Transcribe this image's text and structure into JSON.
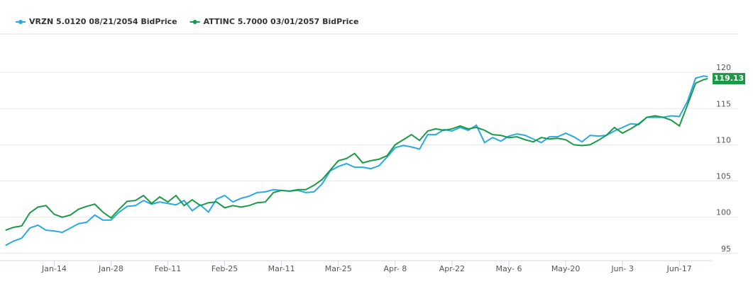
{
  "chart_data": {
    "type": "line",
    "x": [
      2,
      4,
      6,
      8,
      10,
      12,
      14,
      16,
      18,
      20,
      22,
      24,
      26,
      28,
      30,
      32,
      34,
      36,
      38,
      40,
      42,
      44,
      46,
      48,
      50,
      52,
      54,
      56,
      58,
      60,
      62,
      64,
      66,
      68,
      70,
      72,
      74,
      76,
      78,
      80,
      82,
      84,
      86,
      88,
      90,
      92,
      94,
      96,
      98,
      100,
      102,
      104,
      106,
      108,
      110,
      112,
      114,
      116,
      118,
      120,
      122,
      124,
      126,
      128,
      130,
      132,
      134,
      136,
      138,
      140,
      142,
      144,
      146,
      148,
      150,
      152,
      154,
      156,
      158,
      160,
      162,
      164,
      166,
      168,
      170,
      172,
      174,
      175
    ],
    "series": [
      {
        "name": "VRZN 5.0120 08/21/2054 BidPrice",
        "color": "#2aa9e0",
        "values": [
          96.1,
          96.7,
          97.1,
          98.5,
          98.9,
          98.2,
          98.1,
          97.9,
          98.5,
          99.1,
          99.3,
          100.3,
          99.6,
          99.6,
          100.7,
          101.5,
          101.6,
          102.3,
          101.8,
          102.1,
          101.9,
          101.7,
          102.3,
          100.9,
          101.7,
          100.7,
          102.5,
          103.0,
          102.1,
          102.6,
          102.9,
          103.4,
          103.5,
          103.8,
          103.7,
          103.6,
          103.7,
          103.4,
          103.5,
          104.6,
          106.4,
          107.0,
          107.4,
          106.9,
          106.9,
          106.7,
          107.1,
          108.3,
          109.6,
          109.9,
          109.7,
          109.4,
          111.4,
          111.4,
          112.1,
          111.9,
          112.4,
          112.0,
          112.7,
          110.3,
          111.0,
          110.5,
          111.2,
          111.5,
          111.3,
          110.8,
          110.3,
          111.1,
          111.1,
          111.6,
          111.1,
          110.4,
          111.3,
          111.2,
          111.3,
          111.9,
          112.4,
          112.9,
          112.8,
          113.8,
          113.8,
          113.8,
          114.0,
          113.9,
          116.0,
          119.2,
          119.5,
          119.4
        ]
      },
      {
        "name": "ATTINC 5.7000 03/01/2057 BidPrice",
        "color": "#1a9a46",
        "values": [
          98.2,
          98.6,
          98.8,
          100.6,
          101.4,
          101.6,
          100.4,
          100.0,
          100.3,
          101.1,
          101.5,
          101.8,
          100.7,
          99.9,
          101.1,
          102.2,
          102.3,
          103.0,
          101.9,
          102.8,
          102.1,
          103.0,
          101.6,
          102.4,
          101.6,
          102.0,
          102.1,
          101.3,
          101.6,
          101.4,
          101.6,
          102.0,
          102.1,
          103.4,
          103.7,
          103.6,
          103.8,
          103.8,
          104.4,
          105.2,
          106.5,
          107.8,
          108.1,
          108.8,
          107.5,
          107.8,
          108.0,
          108.5,
          110.0,
          110.7,
          111.4,
          110.6,
          111.9,
          112.2,
          112.0,
          112.2,
          112.6,
          112.2,
          112.4,
          112.0,
          111.4,
          111.3,
          111.0,
          111.1,
          110.7,
          110.4,
          111.0,
          110.8,
          110.9,
          110.7,
          110.0,
          109.9,
          110.0,
          110.6,
          111.3,
          112.4,
          111.6,
          112.2,
          112.9,
          113.8,
          114.0,
          113.8,
          113.4,
          112.6,
          115.5,
          118.5,
          119.0,
          119.13
        ]
      }
    ],
    "xlim": [
      1,
      176
    ],
    "xticks": [
      {
        "value": 14,
        "label": "Jan-14"
      },
      {
        "value": 28,
        "label": "Jan-28"
      },
      {
        "value": 42,
        "label": "Feb-11"
      },
      {
        "value": 56,
        "label": "Feb-25"
      },
      {
        "value": 70,
        "label": "Mar-11"
      },
      {
        "value": 84,
        "label": "Mar-25"
      },
      {
        "value": 98,
        "label": "Apr- 8"
      },
      {
        "value": 112,
        "label": "Apr-22"
      },
      {
        "value": 126,
        "label": "May- 6"
      },
      {
        "value": 140,
        "label": "May-20"
      },
      {
        "value": 154,
        "label": "Jun- 3"
      },
      {
        "value": 168,
        "label": "Jun-17"
      }
    ],
    "ylim": [
      94,
      125.3
    ],
    "yticks": [
      95,
      100,
      105,
      110,
      115,
      120
    ],
    "grid": true
  }
}
